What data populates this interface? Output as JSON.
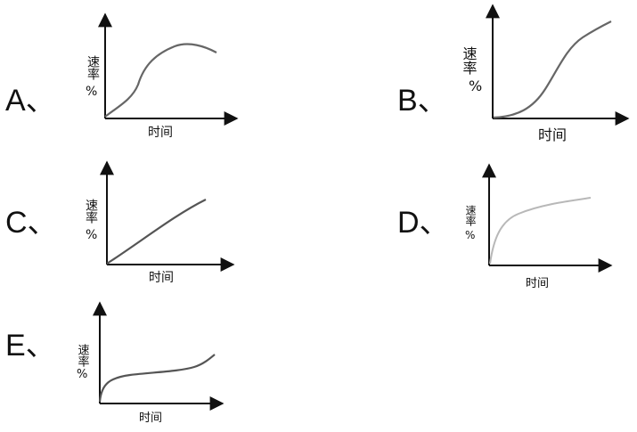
{
  "options": [
    {
      "id": "A",
      "label": "A、",
      "ylabel": "速率",
      "yunit": "%",
      "xlabel": "时间",
      "curve_color": "#666666"
    },
    {
      "id": "B",
      "label": "B、",
      "ylabel": "速率",
      "yunit": "%",
      "xlabel": "时间",
      "curve_color": "#666666"
    },
    {
      "id": "C",
      "label": "C、",
      "ylabel": "速率",
      "yunit": "%",
      "xlabel": "时间",
      "curve_color": "#555555"
    },
    {
      "id": "D",
      "label": "D、",
      "ylabel": "速率",
      "yunit": "%",
      "xlabel": "时间",
      "curve_color": "#b8b8b8"
    },
    {
      "id": "E",
      "label": "E、",
      "ylabel": "速率",
      "yunit": "%",
      "xlabel": "时间",
      "curve_color": "#555555"
    }
  ],
  "colors": {
    "axis": "#111111",
    "text": "#111111"
  }
}
